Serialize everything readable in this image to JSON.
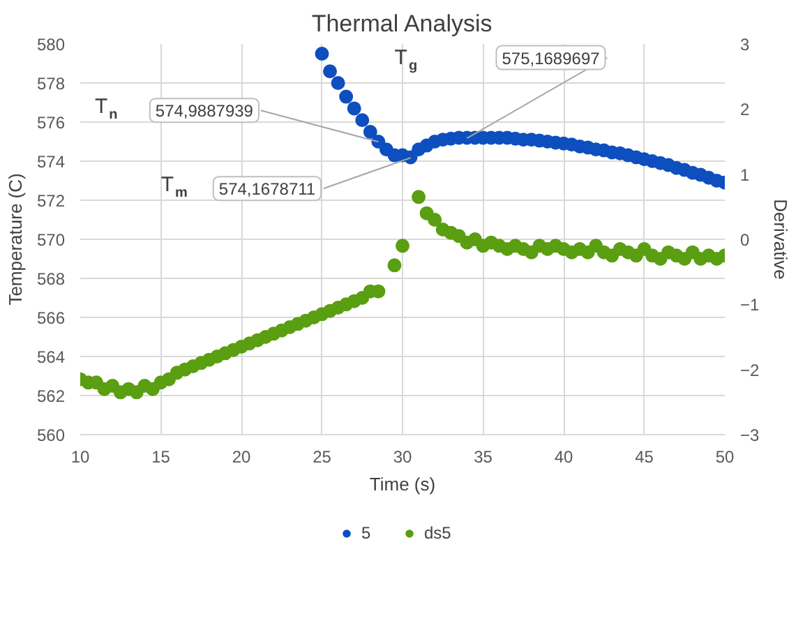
{
  "chart_data": {
    "type": "scatter",
    "title": "Thermal Analysis",
    "xlabel": "Time (s)",
    "ylabel": "Temperature (C)",
    "y2label": "Derivative",
    "xlim": [
      10,
      50
    ],
    "xticks": [
      10,
      15,
      20,
      25,
      30,
      35,
      40,
      45,
      50
    ],
    "ylim": [
      560,
      580
    ],
    "yticks": [
      560,
      562,
      564,
      566,
      568,
      570,
      572,
      574,
      576,
      578,
      580
    ],
    "y2lim": [
      -3,
      3
    ],
    "y2ticks": [
      -3,
      -2,
      -1,
      0,
      1,
      2,
      3
    ],
    "grid": true,
    "legend": "bottom",
    "marker": "circle",
    "series": [
      {
        "name": "5",
        "color": "#0e4fbf",
        "x": [
          25,
          25.5,
          26,
          26.5,
          27,
          27.5,
          28,
          28.5,
          29,
          29.5,
          30,
          30.5,
          31,
          31.5,
          32,
          32.5,
          33,
          33.5,
          34,
          34.5,
          35,
          35.5,
          36,
          36.5,
          37,
          37.5,
          38,
          38.5,
          39,
          39.5,
          40,
          40.5,
          41,
          41.5,
          42,
          42.5,
          43,
          43.5,
          44,
          44.5,
          45,
          45.5,
          46,
          46.5,
          47,
          47.5,
          48,
          48.5,
          49,
          49.5,
          50
        ],
        "values": [
          579.5,
          578.6,
          578.0,
          577.3,
          576.7,
          576.1,
          575.5,
          575.0,
          574.6,
          574.3,
          574.3,
          574.2,
          574.6,
          574.8,
          575.0,
          575.1,
          575.15,
          575.2,
          575.2,
          575.2,
          575.2,
          575.2,
          575.2,
          575.2,
          575.15,
          575.1,
          575.1,
          575.05,
          575.0,
          574.95,
          574.9,
          574.85,
          574.75,
          574.7,
          574.6,
          574.55,
          574.45,
          574.4,
          574.3,
          574.2,
          574.1,
          574.0,
          573.9,
          573.8,
          573.65,
          573.55,
          573.4,
          573.3,
          573.15,
          573.0,
          572.9
        ]
      },
      {
        "name": "ds5",
        "color": "#5a9e12",
        "axis": "y2",
        "x": [
          10,
          10.5,
          11,
          11.5,
          12,
          12.5,
          13,
          13.5,
          14,
          14.5,
          15,
          15.5,
          16,
          16.5,
          17,
          17.5,
          18,
          18.5,
          19,
          19.5,
          20,
          20.5,
          21,
          21.5,
          22,
          22.5,
          23,
          23.5,
          24,
          24.5,
          25,
          25.5,
          26,
          26.5,
          27,
          27.5,
          28,
          28.5,
          29.5,
          30,
          31,
          31.5,
          32,
          32.5,
          33,
          33.5,
          34,
          34.5,
          35,
          35.5,
          36,
          36.5,
          37,
          37.5,
          38,
          38.5,
          39,
          39.5,
          40,
          40.5,
          41,
          41.5,
          42,
          42.5,
          43,
          43.5,
          44,
          44.5,
          45,
          45.5,
          46,
          46.5,
          47,
          47.5,
          48,
          48.5,
          49,
          49.5,
          50
        ],
        "values": [
          -2.15,
          -2.2,
          -2.2,
          -2.3,
          -2.25,
          -2.35,
          -2.3,
          -2.35,
          -2.25,
          -2.3,
          -2.2,
          -2.15,
          -2.05,
          -2.0,
          -1.95,
          -1.9,
          -1.85,
          -1.8,
          -1.75,
          -1.7,
          -1.65,
          -1.6,
          -1.55,
          -1.5,
          -1.45,
          -1.4,
          -1.35,
          -1.3,
          -1.25,
          -1.2,
          -1.15,
          -1.1,
          -1.05,
          -1.0,
          -0.95,
          -0.9,
          -0.8,
          -0.8,
          -0.4,
          -0.1,
          0.65,
          0.4,
          0.3,
          0.15,
          0.1,
          0.05,
          -0.05,
          0.0,
          -0.1,
          -0.05,
          -0.1,
          -0.15,
          -0.1,
          -0.15,
          -0.2,
          -0.1,
          -0.15,
          -0.1,
          -0.15,
          -0.2,
          -0.15,
          -0.2,
          -0.1,
          -0.2,
          -0.25,
          -0.15,
          -0.2,
          -0.25,
          -0.15,
          -0.25,
          -0.3,
          -0.2,
          -0.25,
          -0.3,
          -0.2,
          -0.3,
          -0.25,
          -0.3,
          -0.25
        ]
      }
    ],
    "annotations": [
      "T$_{n}$",
      {
        "text": "574,9887939",
        "x": 28.5,
        "y": 574.99
      },
      "T$_{m}$",
      {
        "text": "574,1678711",
        "x": 30.5,
        "y": 574.17
      },
      "T$_{g}$",
      {
        "text": "575,1689697",
        "x": 34,
        "y": 575.17
      }
    ]
  }
}
